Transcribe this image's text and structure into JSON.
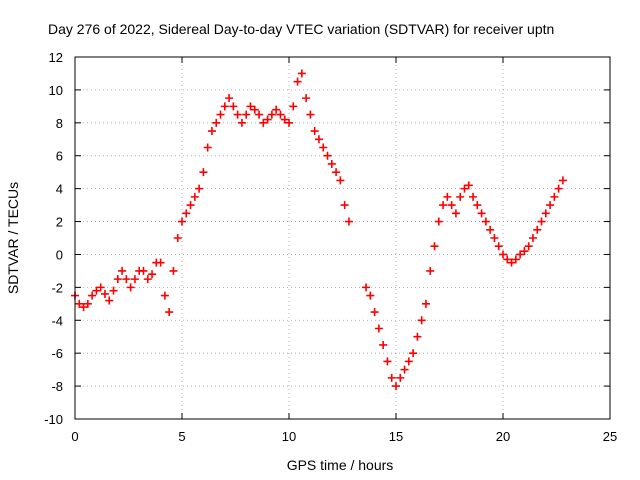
{
  "chart_data": {
    "type": "scatter",
    "title": "Day 276 of 2022, Sidereal Day-to-day VTEC variation (SDTVAR) for receiver uptn",
    "xlabel": "GPS time / hours",
    "ylabel": "SDTVAR / TECUs",
    "xlim": [
      0,
      25
    ],
    "ylim": [
      -10,
      12
    ],
    "xticks": [
      0,
      5,
      10,
      15,
      20,
      25
    ],
    "yticks": [
      -10,
      -8,
      -6,
      -4,
      -2,
      0,
      2,
      4,
      6,
      8,
      10,
      12
    ],
    "xtick_labels": [
      "0",
      "5",
      "10",
      "15",
      "20",
      "25"
    ],
    "ytick_labels": [
      "-10",
      "-8",
      "-6",
      "-4",
      "-2",
      "0",
      "2",
      "4",
      "6",
      "8",
      "10",
      "12"
    ],
    "grid": true,
    "marker": "plus",
    "color": "#ff0000",
    "series": [
      {
        "name": "SDTVAR",
        "x": [
          0.0,
          0.2,
          0.4,
          0.6,
          0.8,
          1.0,
          1.2,
          1.4,
          1.6,
          1.8,
          2.0,
          2.2,
          2.4,
          2.6,
          2.8,
          3.0,
          3.2,
          3.4,
          3.6,
          3.8,
          4.0,
          4.2,
          4.4,
          4.6,
          4.8,
          5.0,
          5.2,
          5.4,
          5.6,
          5.8,
          6.0,
          6.2,
          6.4,
          6.6,
          6.8,
          7.0,
          7.2,
          7.4,
          7.6,
          7.8,
          8.0,
          8.2,
          8.4,
          8.6,
          8.8,
          9.0,
          9.2,
          9.4,
          9.6,
          9.8,
          10.0,
          10.2,
          10.4,
          10.6,
          10.8,
          11.0,
          11.2,
          11.4,
          11.6,
          11.8,
          12.0,
          12.2,
          12.4,
          12.6,
          12.8,
          13.6,
          13.8,
          14.0,
          14.2,
          14.4,
          14.6,
          14.8,
          15.0,
          15.2,
          15.4,
          15.6,
          15.8,
          16.0,
          16.2,
          16.4,
          16.6,
          16.8,
          17.0,
          17.2,
          17.4,
          17.6,
          17.8,
          18.0,
          18.2,
          18.4,
          18.6,
          18.8,
          19.0,
          19.2,
          19.4,
          19.6,
          19.8,
          20.0,
          20.2,
          20.4,
          20.6,
          20.8,
          21.0,
          21.2,
          21.4,
          21.6,
          21.8,
          22.0,
          22.2,
          22.4,
          22.6,
          22.8
        ],
        "y": [
          -2.5,
          -3.0,
          -3.2,
          -3.0,
          -2.5,
          -2.2,
          -2.0,
          -2.4,
          -2.8,
          -2.2,
          -1.5,
          -1.0,
          -1.5,
          -2.0,
          -1.5,
          -1.0,
          -1.0,
          -1.5,
          -1.2,
          -0.5,
          -0.5,
          -2.5,
          -3.5,
          -1.0,
          1.0,
          2.0,
          2.5,
          3.0,
          3.5,
          4.0,
          5.0,
          6.5,
          7.5,
          8.0,
          8.5,
          9.0,
          9.5,
          9.0,
          8.5,
          8.0,
          8.5,
          9.0,
          8.8,
          8.5,
          8.0,
          8.2,
          8.5,
          8.8,
          8.5,
          8.2,
          8.0,
          9.0,
          10.5,
          11.0,
          9.5,
          8.5,
          7.5,
          7.0,
          6.5,
          6.0,
          5.5,
          5.0,
          4.5,
          3.0,
          2.0,
          -2.0,
          -2.5,
          -3.5,
          -4.5,
          -5.5,
          -6.5,
          -7.5,
          -8.0,
          -7.5,
          -7.0,
          -6.5,
          -6.0,
          -5.0,
          -4.0,
          -3.0,
          -1.0,
          0.5,
          2.0,
          3.0,
          3.5,
          3.0,
          2.5,
          3.5,
          4.0,
          4.2,
          3.5,
          3.0,
          2.5,
          2.0,
          1.5,
          1.0,
          0.5,
          0.0,
          -0.3,
          -0.5,
          -0.3,
          0.0,
          0.2,
          0.5,
          1.0,
          1.5,
          2.0,
          2.5,
          3.0,
          3.5,
          4.0,
          4.5
        ]
      }
    ]
  }
}
